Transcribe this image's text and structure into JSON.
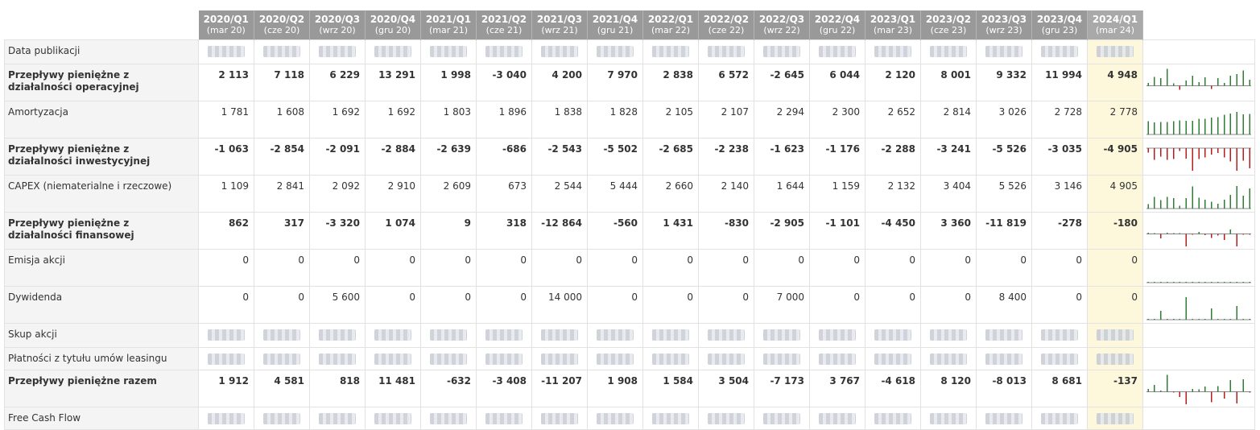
{
  "periods": [
    {
      "q": "2020/Q1",
      "d": "(mar 20)"
    },
    {
      "q": "2020/Q2",
      "d": "(cze 20)"
    },
    {
      "q": "2020/Q3",
      "d": "(wrz 20)"
    },
    {
      "q": "2020/Q4",
      "d": "(gru 20)"
    },
    {
      "q": "2021/Q1",
      "d": "(mar 21)"
    },
    {
      "q": "2021/Q2",
      "d": "(cze 21)"
    },
    {
      "q": "2021/Q3",
      "d": "(wrz 21)"
    },
    {
      "q": "2021/Q4",
      "d": "(gru 21)"
    },
    {
      "q": "2022/Q1",
      "d": "(mar 22)"
    },
    {
      "q": "2022/Q2",
      "d": "(cze 22)"
    },
    {
      "q": "2022/Q3",
      "d": "(wrz 22)"
    },
    {
      "q": "2022/Q4",
      "d": "(gru 22)"
    },
    {
      "q": "2023/Q1",
      "d": "(mar 23)"
    },
    {
      "q": "2023/Q2",
      "d": "(cze 23)"
    },
    {
      "q": "2023/Q3",
      "d": "(wrz 23)"
    },
    {
      "q": "2023/Q4",
      "d": "(gru 23)"
    },
    {
      "q": "2024/Q1",
      "d": "(mar 24)"
    }
  ],
  "colors": {
    "positive": "#2e7d32",
    "negative": "#b71c1c",
    "header": "#999999",
    "current": "#fdf8dc"
  },
  "rows": [
    {
      "label": "Data publikacji",
      "bold": false,
      "blurred": true,
      "h": 30,
      "spark": false
    },
    {
      "label": "Przepływy pieniężne z działalności operacyjnej",
      "bold": true,
      "h": 44,
      "spark": true,
      "values": [
        "2 113",
        "7 118",
        "6 229",
        "13 291",
        "1 998",
        "-3 040",
        "4 200",
        "7 970",
        "2 838",
        "6 572",
        "-2 645",
        "6 044",
        "2 120",
        "8 001",
        "9 332",
        "11 994",
        "4 948"
      ]
    },
    {
      "label": "Amortyzacja",
      "bold": false,
      "h": 44,
      "spark": true,
      "values": [
        "1 781",
        "1 608",
        "1 692",
        "1 692",
        "1 803",
        "1 896",
        "1 838",
        "1 828",
        "2 105",
        "2 107",
        "2 294",
        "2 300",
        "2 652",
        "2 814",
        "3 026",
        "2 728",
        "2 778"
      ]
    },
    {
      "label": "Przepływy pieniężne z działalności inwestycyjnej",
      "bold": true,
      "h": 44,
      "spark": true,
      "values": [
        "-1 063",
        "-2 854",
        "-2 091",
        "-2 884",
        "-2 639",
        "-686",
        "-2 543",
        "-5 502",
        "-2 685",
        "-2 238",
        "-1 623",
        "-1 176",
        "-2 288",
        "-3 241",
        "-5 526",
        "-3 035",
        "-4 905"
      ]
    },
    {
      "label": "CAPEX (niematerialne i rzeczowe)",
      "bold": false,
      "h": 44,
      "spark": true,
      "values": [
        "1 109",
        "2 841",
        "2 092",
        "2 910",
        "2 609",
        "673",
        "2 544",
        "5 444",
        "2 660",
        "2 140",
        "1 644",
        "1 159",
        "2 132",
        "3 404",
        "5 526",
        "3 146",
        "4 905"
      ]
    },
    {
      "label": "Przepływy pieniężne z działalności finansowej",
      "bold": true,
      "h": 44,
      "spark": true,
      "values": [
        "862",
        "317",
        "-3 320",
        "1 074",
        "9",
        "318",
        "-12 864",
        "-560",
        "1 431",
        "-830",
        "-2 905",
        "-1 101",
        "-4 450",
        "3 360",
        "-11 819",
        "-278",
        "-180"
      ]
    },
    {
      "label": "Emisja akcji",
      "bold": false,
      "h": 44,
      "spark": true,
      "values": [
        "0",
        "0",
        "0",
        "0",
        "0",
        "0",
        "0",
        "0",
        "0",
        "0",
        "0",
        "0",
        "0",
        "0",
        "0",
        "0",
        "0"
      ]
    },
    {
      "label": "Dywidenda",
      "bold": false,
      "h": 44,
      "spark": true,
      "values": [
        "0",
        "0",
        "5 600",
        "0",
        "0",
        "0",
        "14 000",
        "0",
        "0",
        "0",
        "7 000",
        "0",
        "0",
        "0",
        "8 400",
        "0",
        "0"
      ]
    },
    {
      "label": "Skup akcji",
      "bold": false,
      "blurred": true,
      "h": 30,
      "spark": false
    },
    {
      "label": "Płatności z tytułu umów leasingu",
      "bold": false,
      "blurred": true,
      "h": 28,
      "spark": false
    },
    {
      "label": "Przepływy pieniężne razem",
      "bold": true,
      "h": 44,
      "spark": true,
      "values": [
        "1 912",
        "4 581",
        "818",
        "11 481",
        "-632",
        "-3 408",
        "-11 207",
        "1 908",
        "1 584",
        "3 504",
        "-7 173",
        "3 767",
        "-4 618",
        "8 120",
        "-8 013",
        "8 681",
        "-137"
      ]
    },
    {
      "label": "Free Cash Flow",
      "bold": false,
      "blurred": true,
      "h": 28,
      "spark": false
    }
  ]
}
